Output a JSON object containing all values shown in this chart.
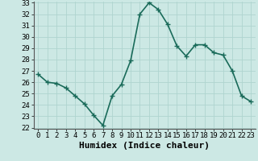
{
  "x": [
    0,
    1,
    2,
    3,
    4,
    5,
    6,
    7,
    8,
    9,
    10,
    11,
    12,
    13,
    14,
    15,
    16,
    17,
    18,
    19,
    20,
    21,
    22,
    23
  ],
  "y": [
    26.7,
    26.0,
    25.9,
    25.5,
    24.8,
    24.1,
    23.1,
    22.2,
    24.8,
    25.8,
    27.9,
    32.0,
    33.0,
    32.4,
    31.1,
    29.2,
    28.3,
    29.3,
    29.3,
    28.6,
    28.4,
    27.0,
    24.8,
    24.3
  ],
  "xlabel": "Humidex (Indice chaleur)",
  "ylim": [
    22,
    33
  ],
  "xlim": [
    -0.5,
    23.5
  ],
  "yticks": [
    22,
    23,
    24,
    25,
    26,
    27,
    28,
    29,
    30,
    31,
    32,
    33
  ],
  "xticks": [
    0,
    1,
    2,
    3,
    4,
    5,
    6,
    7,
    8,
    9,
    10,
    11,
    12,
    13,
    14,
    15,
    16,
    17,
    18,
    19,
    20,
    21,
    22,
    23
  ],
  "line_color": "#1a6b5a",
  "marker_color": "#1a6b5a",
  "bg_color": "#cce8e4",
  "grid_color": "#afd4cf",
  "tick_label_fontsize": 6.5,
  "xlabel_fontsize": 8,
  "line_width": 1.2,
  "marker_size": 4.5
}
